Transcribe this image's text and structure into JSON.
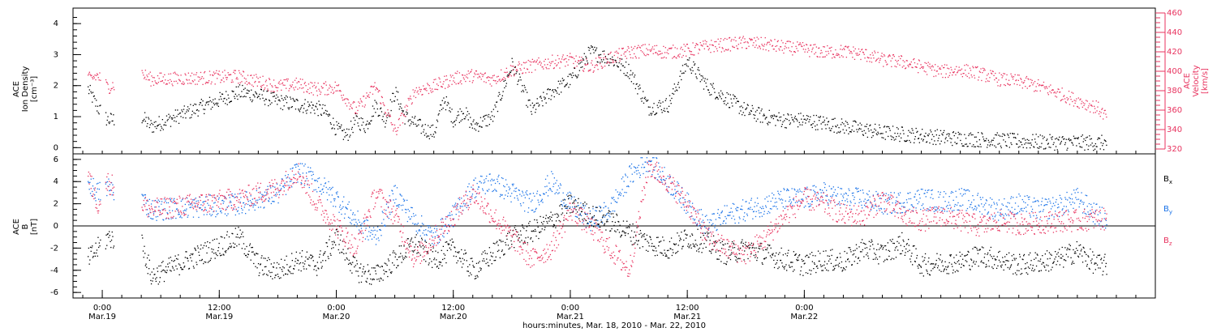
{
  "chart_data": [
    {
      "type": "scatter",
      "ylabel_lines": [
        "ACE",
        "Ion Density",
        "[cm⁻³]"
      ],
      "ylim": [
        -0.2,
        4.5
      ],
      "yticks": [
        "0",
        "1",
        "2",
        "3",
        "4"
      ],
      "right_axis": {
        "ylabel_lines": [
          "ACE",
          "Velocity",
          "[km/s]"
        ],
        "ylim": [
          315,
          465
        ],
        "yticks": [
          "320",
          "340",
          "360",
          "380",
          "400",
          "420",
          "440",
          "460"
        ],
        "color": "#e8335f"
      },
      "series": [
        {
          "color": "#000000",
          "x": [
            -1.5,
            -0.5,
            0.5,
            4,
            5,
            14,
            16,
            18,
            20,
            22,
            23,
            24,
            25,
            26,
            27,
            28,
            29,
            30,
            31,
            32,
            33,
            34,
            35,
            36,
            37,
            38,
            40,
            42,
            44,
            46,
            48,
            50,
            52,
            54,
            56,
            58,
            60,
            62,
            64,
            66,
            68,
            70,
            72,
            74,
            76,
            78,
            80,
            82,
            84,
            86,
            88,
            90,
            92,
            94,
            96,
            98,
            100,
            102,
            103
          ],
          "y": [
            1.9,
            1.3,
            0.9,
            1.0,
            0.7,
            1.8,
            1.7,
            1.5,
            1.4,
            1.3,
            1.1,
            0.6,
            0.4,
            0.9,
            0.7,
            1.4,
            0.9,
            1.8,
            1.0,
            0.8,
            0.6,
            0.5,
            1.6,
            0.9,
            1.2,
            0.7,
            1.0,
            2.7,
            1.2,
            1.8,
            2.2,
            3.1,
            2.9,
            2.5,
            1.3,
            1.4,
            2.8,
            2.0,
            1.6,
            1.2,
            1.0,
            0.9,
            0.9,
            0.8,
            0.7,
            0.6,
            0.5,
            0.45,
            0.4,
            0.35,
            0.3,
            0.28,
            0.25,
            0.22,
            0.2,
            0.18,
            0.18,
            0.17,
            0.17
          ]
        },
        {
          "color": "#e8335f",
          "x": [
            -1.5,
            -0.5,
            0.5,
            4,
            5,
            14,
            16,
            18,
            20,
            22,
            24,
            26,
            28,
            30,
            32,
            34,
            36,
            38,
            40,
            42,
            44,
            46,
            48,
            50,
            52,
            54,
            56,
            58,
            60,
            62,
            64,
            66,
            68,
            70,
            72,
            74,
            76,
            78,
            80,
            82,
            84,
            86,
            88,
            90,
            92,
            94,
            96,
            98,
            100,
            102,
            103
          ],
          "y": [
            392,
            396,
            384,
            398,
            392,
            395,
            390,
            385,
            387,
            382,
            384,
            360,
            385,
            338,
            380,
            385,
            393,
            396,
            392,
            402,
            406,
            410,
            412,
            405,
            414,
            420,
            422,
            420,
            422,
            426,
            428,
            430,
            428,
            425,
            423,
            420,
            421,
            418,
            412,
            410,
            405,
            400,
            402,
            398,
            392,
            390,
            385,
            378,
            370,
            363,
            353
          ]
        }
      ]
    },
    {
      "type": "scatter",
      "ylabel_lines": [
        "ACE",
        "B",
        "[nT]"
      ],
      "ylim": [
        -6.5,
        6.5
      ],
      "yticks": [
        "-6",
        "-4",
        "-2",
        "0",
        "2",
        "4",
        "6"
      ],
      "zero_line": true,
      "series": [
        {
          "name": "Bx",
          "color": "#000000",
          "x": [
            -1.5,
            -0.5,
            0.5,
            4,
            5,
            14,
            16,
            18,
            20,
            22,
            24,
            26,
            28,
            30,
            32,
            34,
            36,
            38,
            40,
            42,
            44,
            46,
            48,
            50,
            52,
            54,
            56,
            58,
            60,
            62,
            64,
            66,
            68,
            70,
            72,
            74,
            76,
            78,
            80,
            82,
            84,
            86,
            88,
            90,
            92,
            94,
            96,
            98,
            100,
            102,
            103
          ],
          "y": [
            -3,
            -2,
            -1,
            -1.5,
            -4.5,
            -1,
            -3.5,
            -4,
            -3,
            -3.5,
            -1,
            -4,
            -4.5,
            -3,
            -1.5,
            -3,
            -2,
            -4,
            -2.5,
            -1,
            -0.5,
            0.5,
            2,
            1,
            0.5,
            -0.5,
            -1.5,
            -2,
            -1,
            -1.5,
            -2.5,
            -2,
            -2.5,
            -3,
            -3.5,
            -3,
            -3.2,
            -2,
            -2.5,
            -1.5,
            -3.5,
            -3.3,
            -3.2,
            -2.6,
            -3,
            -3.5,
            -3.2,
            -3,
            -2.2,
            -3.5,
            -3.5
          ]
        },
        {
          "name": "By",
          "color": "#1a73e8",
          "x": [
            -1.5,
            -0.5,
            0.5,
            4,
            5,
            14,
            16,
            18,
            20,
            22,
            24,
            26,
            28,
            30,
            32,
            34,
            36,
            38,
            40,
            42,
            44,
            46,
            48,
            50,
            52,
            54,
            56,
            58,
            60,
            62,
            64,
            66,
            68,
            70,
            72,
            74,
            76,
            78,
            80,
            82,
            84,
            86,
            88,
            90,
            92,
            94,
            96,
            98,
            100,
            102,
            103
          ],
          "y": [
            4,
            3,
            3.5,
            2.5,
            1.5,
            2,
            2.5,
            3,
            5,
            4,
            2.5,
            0.5,
            -1,
            3,
            0.5,
            -1,
            1,
            3.5,
            4,
            3,
            2,
            4,
            2,
            0.5,
            1.5,
            4.5,
            6,
            4,
            2,
            0,
            1,
            1.5,
            2,
            2.5,
            2.5,
            3,
            2.5,
            2.5,
            2,
            2.2,
            2.5,
            2.2,
            2.5,
            2,
            1.5,
            2,
            1.5,
            1.8,
            2.5,
            1,
            0.5
          ]
        },
        {
          "name": "Bz",
          "color": "#e8335f",
          "x": [
            -1.5,
            -0.5,
            0.5,
            4,
            5,
            14,
            16,
            18,
            20,
            22,
            24,
            26,
            28,
            30,
            32,
            34,
            36,
            38,
            40,
            42,
            44,
            46,
            48,
            50,
            52,
            54,
            56,
            58,
            60,
            62,
            64,
            66,
            68,
            70,
            72,
            74,
            76,
            78,
            80,
            82,
            84,
            86,
            88,
            90,
            92,
            94,
            96,
            98,
            100,
            102,
            103
          ],
          "y": [
            4.5,
            2,
            4,
            2,
            1.5,
            2.5,
            3,
            3.5,
            5,
            2,
            0,
            -2,
            3,
            1,
            -3,
            -1,
            1,
            3,
            1,
            -1,
            -3,
            -2,
            1.5,
            0,
            -2,
            -4,
            5.5,
            4,
            2,
            -1,
            -2,
            -2.5,
            -1,
            1,
            2.5,
            2,
            1,
            1,
            2.5,
            1,
            0.5,
            1,
            0.5,
            0,
            0.5,
            0.2,
            0.3,
            0.5,
            0.5,
            0.7,
            0.6
          ]
        }
      ],
      "legend": [
        "B_x",
        "B_y",
        "B_z"
      ]
    }
  ],
  "xaxis": {
    "xlim": [
      -3,
      108
    ],
    "ticks": [
      {
        "x": 0,
        "time": "0:00",
        "date": "Mar.19"
      },
      {
        "x": 12,
        "time": "12:00",
        "date": "Mar.19"
      },
      {
        "x": 24,
        "time": "0:00",
        "date": "Mar.20"
      },
      {
        "x": 36,
        "time": "12:00",
        "date": "Mar.20"
      },
      {
        "x": 48,
        "time": "0:00",
        "date": "Mar.21"
      },
      {
        "x": 60,
        "time": "12:00",
        "date": "Mar.21"
      },
      {
        "x": 72,
        "time": "0:00",
        "date": "Mar.22"
      }
    ],
    "label": "hours:minutes, Mar. 18, 2010 - Mar. 22, 2010"
  }
}
